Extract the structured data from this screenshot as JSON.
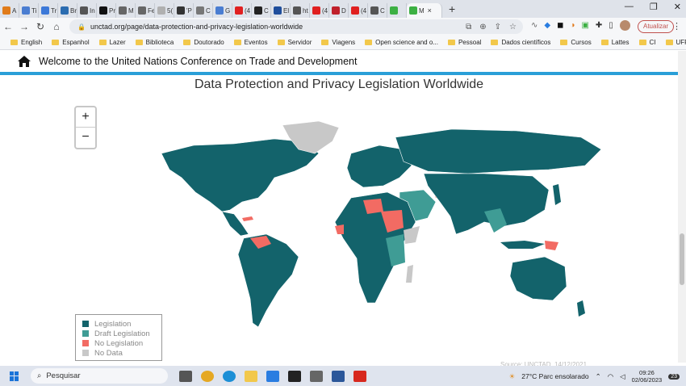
{
  "browser": {
    "tabs": [
      {
        "label": "A",
        "color": "#e07b1a"
      },
      {
        "label": "Ti",
        "color": "#4a7dd1"
      },
      {
        "label": "Tr",
        "color": "#3c78d8"
      },
      {
        "label": "Br",
        "color": "#2b6cb0"
      },
      {
        "label": "In",
        "color": "#555555"
      },
      {
        "label": "Pr",
        "color": "#111111"
      },
      {
        "label": "M",
        "color": "#666666"
      },
      {
        "label": "Fe",
        "color": "#666666"
      },
      {
        "label": "5(",
        "color": "#b0b0b0"
      },
      {
        "label": "'P",
        "color": "#333333"
      },
      {
        "label": "C",
        "color": "#777777"
      },
      {
        "label": "G",
        "color": "#4a7dd1"
      },
      {
        "label": "(4",
        "color": "#e02020"
      },
      {
        "label": "C",
        "color": "#222222"
      },
      {
        "label": "El",
        "color": "#1f4e9c"
      },
      {
        "label": "ht",
        "color": "#555555"
      },
      {
        "label": "(4",
        "color": "#e02020"
      },
      {
        "label": "D",
        "color": "#c0202b"
      },
      {
        "label": "(4",
        "color": "#e02020"
      },
      {
        "label": "C",
        "color": "#555555"
      },
      {
        "label": "",
        "color": "#3cb043"
      }
    ],
    "active_tab": {
      "label": "M",
      "close": "×"
    },
    "new_tab": "+",
    "window_controls": {
      "minimize": "—",
      "maximize": "❐",
      "close": "✕"
    },
    "nav": {
      "back": "←",
      "forward": "→",
      "reload": "↻",
      "home": "⌂"
    },
    "url": "unctad.org/page/data-protection-and-privacy-legislation-worldwide",
    "update_label": "Atualizar",
    "menu": "⋮",
    "bookmarks": [
      "English",
      "Espanhol",
      "Lazer",
      "Biblioteca",
      "Doutorado",
      "Eventos",
      "Servidor",
      "Viagens",
      "Open science and o...",
      "Pessoal",
      "Dados científicos",
      "Cursos",
      "Lattes",
      "CI",
      "UFRN"
    ]
  },
  "site": {
    "header_title": "Welcome to the United Nations Conference on Trade and Development",
    "accent": "#2a9fd8"
  },
  "map": {
    "title": "Data Protection and Privacy Legislation Worldwide",
    "zoom_in": "+",
    "zoom_out": "−",
    "legend": [
      {
        "label": "Legislation",
        "color": "#13636b"
      },
      {
        "label": "Draft Legislation",
        "color": "#3f9c95"
      },
      {
        "label": "No Legislation",
        "color": "#f26b63"
      },
      {
        "label": "No Data",
        "color": "#c8c8c8"
      }
    ],
    "credit": "Source: UNCTAD, 14/12/2021"
  },
  "taskbar": {
    "search_placeholder": "Pesquisar",
    "weather": "27°C  Parc ensolarado",
    "time": "09:26",
    "date": "02/06/2023",
    "notification_count": "23"
  }
}
